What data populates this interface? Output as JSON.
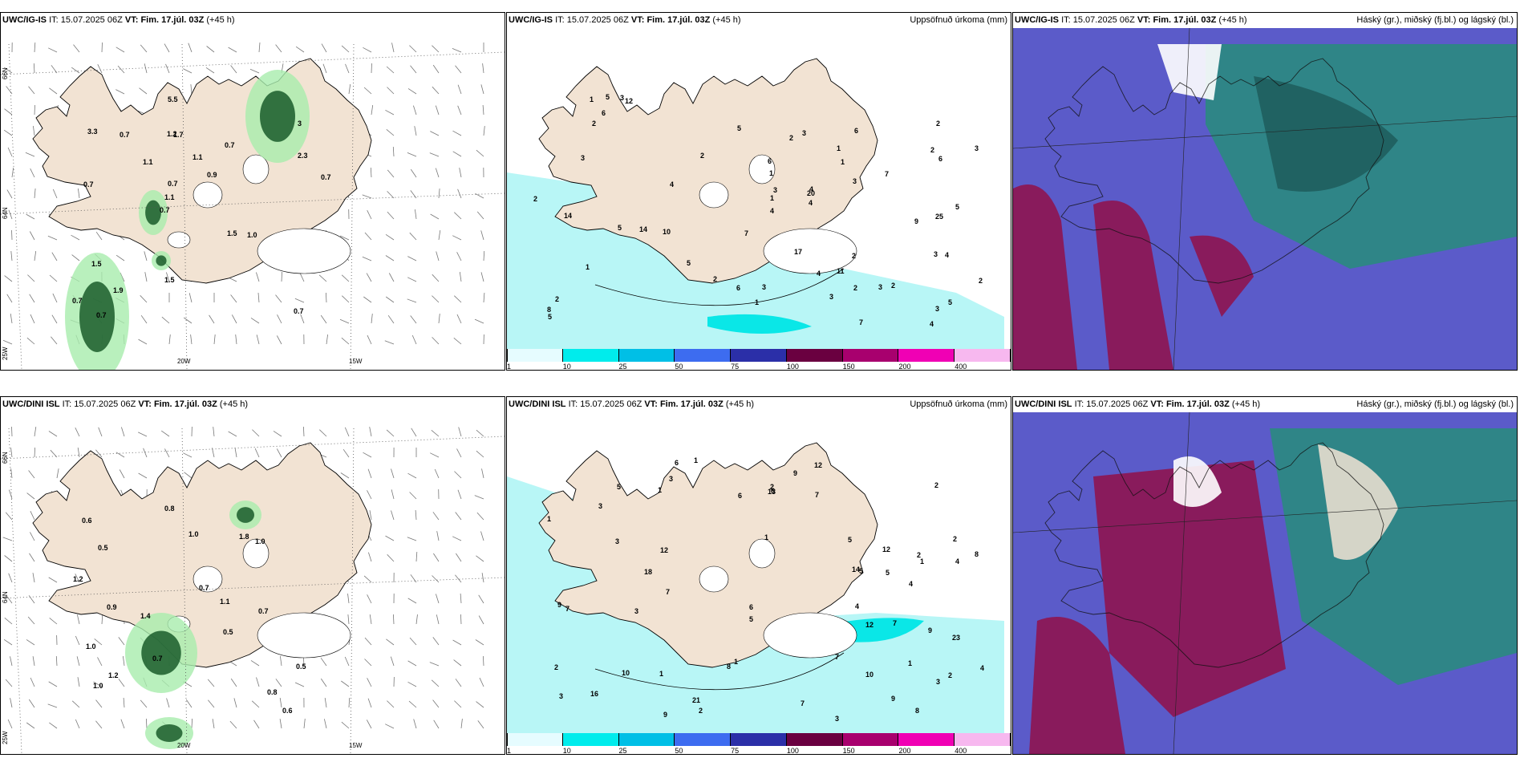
{
  "panels": [
    {
      "id": "p1",
      "model": "UWC/IG-IS",
      "it_label": "IT:",
      "it": "15.07.2025 06Z",
      "vt_label": "VT:",
      "vt": "Fim. 17.júl. 03Z",
      "lead": "(+45 h)",
      "right_title": ""
    },
    {
      "id": "p2",
      "model": "UWC/IG-IS",
      "it_label": "IT:",
      "it": "15.07.2025 06Z",
      "vt_label": "VT:",
      "vt": "Fim. 17.júl. 03Z",
      "lead": "(+45 h)",
      "right_title": "Uppsöfnuð úrkoma (mm)"
    },
    {
      "id": "p3",
      "model": "UWC/IG-IS",
      "it_label": "IT:",
      "it": "15.07.2025 06Z",
      "vt_label": "VT:",
      "vt": "Fim. 17.júl. 03Z",
      "lead": "(+45 h)",
      "right_title": "Háský (gr.), miðský (fj.bl.) og lágský (bl.)"
    },
    {
      "id": "p4",
      "model": "UWC/DINI ISL",
      "it_label": "IT:",
      "it": "15.07.2025 06Z",
      "vt_label": "VT:",
      "vt": "Fim. 17.júl. 03Z",
      "lead": "(+45 h)",
      "right_title": ""
    },
    {
      "id": "p5",
      "model": "UWC/DINI ISL",
      "it_label": "IT:",
      "it": "15.07.2025 06Z",
      "vt_label": "VT:",
      "vt": "Fim. 17.júl. 03Z",
      "lead": "(+45 h)",
      "right_title": "Uppsöfnuð úrkoma (mm)"
    },
    {
      "id": "p6",
      "model": "UWC/DINI ISL",
      "it_label": "IT:",
      "it": "15.07.2025 06Z",
      "vt_label": "VT:",
      "vt": "Fim. 17.júl. 03Z",
      "lead": "(+45 h)",
      "right_title": "Háský (gr.), miðský (fj.bl.) og lágský (bl.)"
    }
  ],
  "grid_labels": {
    "lat_66": "66N",
    "lat_64": "64N",
    "lon_25": "25W",
    "lon_20": "20W",
    "lon_15": "15W"
  },
  "colorbar": {
    "ticks": [
      "1",
      "10",
      "25",
      "50",
      "75",
      "100",
      "150",
      "200",
      "400"
    ],
    "colors": [
      "#e6fcff",
      "#00ecec",
      "#00bfe6",
      "#3d6cf0",
      "#2b2fa8",
      "#6a0040",
      "#a8006e",
      "#f000b4",
      "#f7b8ef"
    ]
  },
  "colors": {
    "land": "#f2e3d3",
    "sea": "#ffffff",
    "precip_light": "#b4f5f5",
    "precip_mid": "#00e6e6",
    "cloud_high": "#8e1450",
    "cloud_mid": "#5b5bc9",
    "cloud_low": "#2a8a80",
    "vis_green": "#1a5c2a"
  },
  "precip_p1": [
    "0.7",
    "0.7",
    "3",
    "0.7",
    "0.7",
    "0.7",
    "1.2",
    "1.1",
    "1.5",
    "1.1",
    "0.7",
    "1.9",
    "1.7",
    "0.9",
    "1.0",
    "3.3",
    "5.5",
    "0.7",
    "1.5",
    "2.3",
    "1.1",
    "1.5",
    "0.7",
    "0.7"
  ],
  "precip_p4": [
    "0.6",
    "0.9",
    "0.5",
    "0.6",
    "0.5",
    "0.5",
    "1.2",
    "1.4",
    "1.0",
    "1.0",
    "1.8",
    "0.8",
    "0.7",
    "0.8",
    "1.1",
    "1.0",
    "0.7",
    "0.7",
    "1.2",
    "1.0"
  ],
  "precip_p2": [
    "1",
    "4",
    "3",
    "2",
    "3",
    "2",
    "1",
    "1",
    "4",
    "2",
    "12",
    "17",
    "25",
    "1",
    "1",
    "2",
    "4",
    "2",
    "3",
    "2",
    "5",
    "6",
    "4",
    "2",
    "3",
    "2",
    "3",
    "3",
    "2",
    "3",
    "6",
    "8",
    "3",
    "6",
    "5",
    "2",
    "5",
    "7",
    "6",
    "3",
    "1",
    "4",
    "1",
    "3",
    "10",
    "5",
    "7",
    "3",
    "11",
    "14",
    "20",
    "14",
    "9",
    "5",
    "5",
    "2",
    "7",
    "5",
    "2",
    "6",
    "4",
    "4"
  ],
  "precip_p5": [
    "1",
    "2",
    "2",
    "1",
    "3",
    "3",
    "2",
    "1",
    "2",
    "3",
    "4",
    "1",
    "4",
    "2",
    "2",
    "3",
    "3",
    "1",
    "1",
    "1",
    "9",
    "7",
    "7",
    "14",
    "21",
    "8",
    "9",
    "7",
    "5",
    "4",
    "3",
    "10",
    "9",
    "6",
    "9",
    "9",
    "5",
    "6",
    "8",
    "7",
    "7",
    "5",
    "13",
    "18",
    "23",
    "12",
    "16",
    "12",
    "12",
    "12",
    "10",
    "5",
    "6",
    "8",
    "7",
    "4",
    "6",
    "5",
    "3",
    "2",
    "1"
  ]
}
